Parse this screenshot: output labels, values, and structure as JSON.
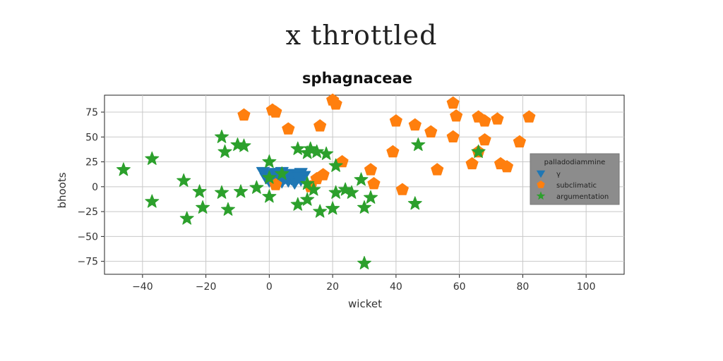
{
  "page_title": "x throttled",
  "chart_data": {
    "type": "scatter",
    "title": "sphagnaceae",
    "xlabel": "wicket",
    "ylabel": "bhoots",
    "xlim": [
      -52,
      112
    ],
    "ylim": [
      -88,
      92
    ],
    "xticks": [
      -40,
      -20,
      0,
      20,
      40,
      60,
      80,
      100
    ],
    "yticks": [
      -75,
      -50,
      -25,
      0,
      25,
      50,
      75
    ],
    "grid": true,
    "legend": {
      "title": "palladodiammine",
      "placement": "right"
    },
    "series": [
      {
        "name": "γ",
        "marker": "triangle-down",
        "color": "#1f77b4",
        "points": [
          [
            -2,
            15
          ],
          [
            0,
            13
          ],
          [
            2,
            14
          ],
          [
            4,
            15
          ],
          [
            6,
            13
          ],
          [
            8,
            12
          ],
          [
            10,
            14
          ],
          [
            11,
            11
          ],
          [
            -1,
            9
          ],
          [
            1,
            10
          ],
          [
            3,
            11
          ],
          [
            5,
            9
          ],
          [
            7,
            8
          ],
          [
            9,
            9
          ],
          [
            0,
            6
          ],
          [
            2,
            7
          ],
          [
            4,
            5
          ],
          [
            6,
            6
          ],
          [
            8,
            4
          ],
          [
            10,
            7
          ],
          [
            3,
            14
          ],
          [
            5,
            12
          ],
          [
            7,
            13
          ],
          [
            9,
            10
          ]
        ]
      },
      {
        "name": "subclimatic",
        "marker": "pentagon",
        "color": "#ff7f0e",
        "points": [
          [
            -8,
            72
          ],
          [
            1,
            77
          ],
          [
            2,
            75
          ],
          [
            20,
            87
          ],
          [
            21,
            83
          ],
          [
            58,
            84
          ],
          [
            59,
            71
          ],
          [
            66,
            70
          ],
          [
            72,
            68
          ],
          [
            82,
            70
          ],
          [
            68,
            66
          ],
          [
            6,
            58
          ],
          [
            16,
            61
          ],
          [
            40,
            66
          ],
          [
            46,
            62
          ],
          [
            51,
            55
          ],
          [
            58,
            50
          ],
          [
            68,
            47
          ],
          [
            79,
            45
          ],
          [
            39,
            35
          ],
          [
            66,
            35
          ],
          [
            64,
            23
          ],
          [
            53,
            17
          ],
          [
            73,
            23
          ],
          [
            75,
            20
          ],
          [
            32,
            17
          ],
          [
            23,
            25
          ],
          [
            17,
            12
          ],
          [
            15,
            8
          ],
          [
            33,
            3
          ],
          [
            42,
            -3
          ],
          [
            2,
            2
          ],
          [
            13,
            0
          ]
        ]
      },
      {
        "name": "argumentation",
        "marker": "star",
        "color": "#2ca02c",
        "points": [
          [
            -46,
            17
          ],
          [
            -37,
            28
          ],
          [
            -37,
            -15
          ],
          [
            -27,
            6
          ],
          [
            -22,
            -5
          ],
          [
            -21,
            -21
          ],
          [
            -26,
            -32
          ],
          [
            -15,
            -6
          ],
          [
            -14,
            35
          ],
          [
            -15,
            50
          ],
          [
            -13,
            -23
          ],
          [
            -9,
            -5
          ],
          [
            -10,
            42
          ],
          [
            -8,
            41
          ],
          [
            -4,
            -1
          ],
          [
            0,
            25
          ],
          [
            0,
            9
          ],
          [
            0,
            -10
          ],
          [
            4,
            13
          ],
          [
            9,
            38
          ],
          [
            12,
            34
          ],
          [
            13,
            38
          ],
          [
            15,
            35
          ],
          [
            18,
            33
          ],
          [
            21,
            21
          ],
          [
            9,
            -18
          ],
          [
            12,
            -13
          ],
          [
            14,
            -3
          ],
          [
            16,
            -25
          ],
          [
            20,
            -22
          ],
          [
            21,
            -6
          ],
          [
            24,
            -3
          ],
          [
            26,
            -6
          ],
          [
            29,
            7
          ],
          [
            30,
            -21
          ],
          [
            32,
            -11
          ],
          [
            47,
            42
          ],
          [
            46,
            -17
          ],
          [
            30,
            -77
          ],
          [
            66,
            35
          ],
          [
            12,
            3
          ]
        ]
      }
    ]
  }
}
